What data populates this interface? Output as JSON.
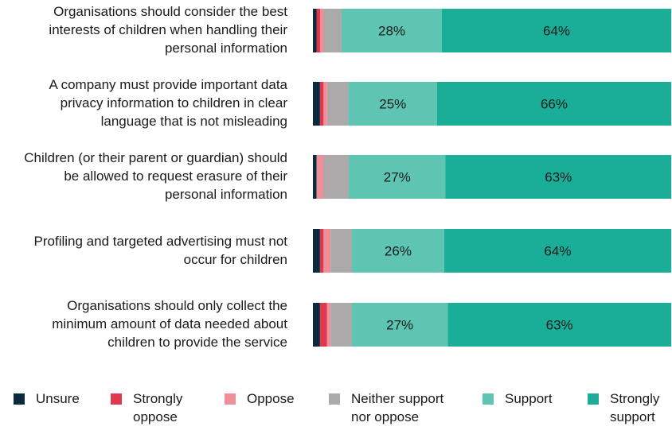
{
  "chart_data": {
    "type": "bar",
    "orientation": "horizontal",
    "stacked": true,
    "title": "",
    "xlabel": "",
    "ylabel": "",
    "categories": [
      "Organisations should consider the best interests of children when handling their personal information",
      "A company must provide important data privacy information to children in clear language that is not misleading",
      "Children (or their parent or guardian) should be allowed to request erasure of their personal information",
      "Profiling and targeted advertising must not occur for children",
      "Organisations should only collect the minimum amount of data needed about children to provide the service"
    ],
    "category_lines": [
      [
        "Organisations should consider the best",
        "interests of children when handling their",
        "personal information"
      ],
      [
        "A company must provide important data",
        "privacy information to children in clear",
        "language that is not misleading"
      ],
      [
        "Children (or their parent or guardian) should",
        "be allowed to request erasure of their",
        "personal information"
      ],
      [
        "Profiling and targeted advertising must not",
        "occur for children"
      ],
      [
        "Organisations should only collect the",
        "minimum amount of data needed about",
        "children to provide the service"
      ]
    ],
    "series": [
      {
        "name": "Unsure",
        "color": "#0d2b3e",
        "values": [
          1,
          2,
          1,
          2,
          2
        ]
      },
      {
        "name": "Strongly oppose",
        "color": "#e0394f",
        "values": [
          1,
          1,
          0,
          1,
          2
        ]
      },
      {
        "name": "Oppose",
        "color": "#ee8f99",
        "values": [
          1,
          1,
          2,
          2,
          1
        ]
      },
      {
        "name": "Neither support nor oppose",
        "color": "#aba9a9",
        "values": [
          5,
          6,
          7,
          6,
          6
        ]
      },
      {
        "name": "Support",
        "color": "#5fc5b3",
        "values": [
          28,
          25,
          27,
          26,
          27
        ]
      },
      {
        "name": "Strongly support",
        "color": "#1aae98",
        "values": [
          64,
          66,
          63,
          64,
          63
        ]
      }
    ],
    "value_labels": [
      [
        "",
        "",
        "",
        "",
        "28%",
        "64%"
      ],
      [
        "",
        "",
        "",
        "",
        "25%",
        "66%"
      ],
      [
        "",
        "",
        "",
        "",
        "27%",
        "63%"
      ],
      [
        "",
        "",
        "",
        "",
        "26%",
        "64%"
      ],
      [
        "",
        "",
        "",
        "",
        "27%",
        "63%"
      ]
    ],
    "xlim": [
      0,
      100
    ],
    "legend_position": "bottom",
    "legend": [
      {
        "lines": [
          "Unsure"
        ]
      },
      {
        "lines": [
          "Strongly",
          "oppose"
        ]
      },
      {
        "lines": [
          "Oppose"
        ]
      },
      {
        "lines": [
          "Neither support",
          "nor oppose"
        ]
      },
      {
        "lines": [
          "Support"
        ]
      },
      {
        "lines": [
          "Strongly",
          "support"
        ]
      }
    ]
  }
}
